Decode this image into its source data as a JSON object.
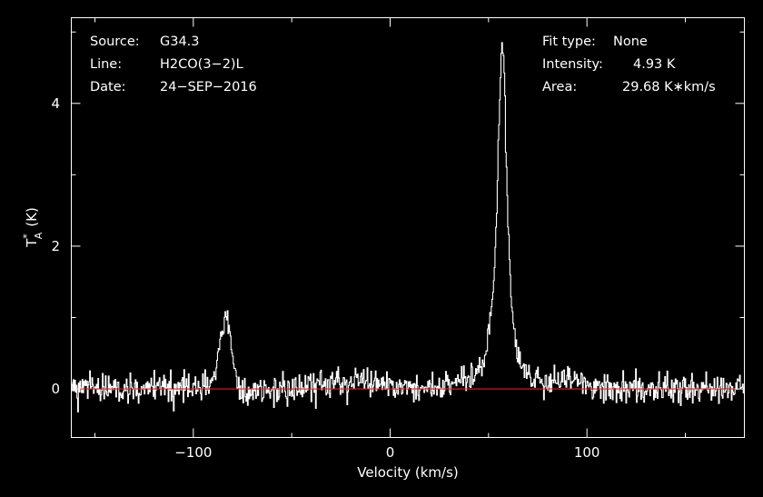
{
  "chart_data": {
    "type": "line",
    "title": "",
    "xlabel": "Velocity (km/s)",
    "ylabel": {
      "main": "T",
      "sup": "*",
      "sub": "A",
      "unit": "(K)"
    },
    "xlim": [
      -162,
      180
    ],
    "ylim": [
      -0.68,
      5.2
    ],
    "xticks": [
      -100,
      0,
      100
    ],
    "xtick_labels": [
      "−100",
      "0",
      "100"
    ],
    "yticks": [
      0,
      2,
      4
    ],
    "ytick_labels": [
      "0",
      "2",
      "4"
    ],
    "grid": false,
    "baseline_color": "#e02020",
    "line_color": "#ffffff",
    "background": "#000000",
    "info_left": [
      {
        "key": "Source:",
        "value": "G34.3"
      },
      {
        "key": "Line:",
        "value": "H2CO(3−2)L"
      },
      {
        "key": "Date:",
        "value": "24−SEP−2016"
      }
    ],
    "info_right": [
      {
        "key": "Fit type:",
        "value": "None"
      },
      {
        "key": "Intensity:",
        "value": "4.93 K"
      },
      {
        "key": "Area:",
        "value": "29.68 K∗km/s"
      }
    ],
    "series": [
      {
        "noise_sigma": 0.1,
        "channel_width_kms": 0.38,
        "components": [
          {
            "center_kms": 57,
            "peak_k": 4.85,
            "fwhm_kms": 6.0,
            "profile": "lorentzian"
          },
          {
            "center_kms": -83.5,
            "peak_k": 1.02,
            "fwhm_kms": 7.0,
            "profile": "gaussian"
          },
          {
            "center_kms": 90,
            "peak_k": 0.18,
            "fwhm_kms": 6.0,
            "profile": "gaussian"
          },
          {
            "center_kms": -20,
            "peak_k": 0.08,
            "fwhm_kms": 40.0,
            "profile": "gaussian"
          }
        ],
        "dips": [
          {
            "center_kms": 63,
            "depth_k": 0.15,
            "fwhm_kms": 10.0
          },
          {
            "center_kms": -75,
            "depth_k": 0.1,
            "fwhm_kms": 8.0
          }
        ]
      }
    ]
  }
}
